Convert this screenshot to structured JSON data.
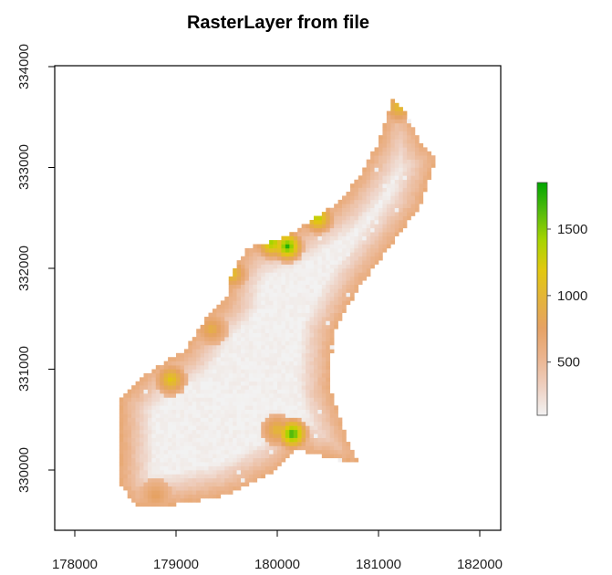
{
  "chart_data": {
    "type": "heatmap",
    "title": "RasterLayer from file",
    "xlabel": "",
    "ylabel": "",
    "xlim": [
      177800,
      182300
    ],
    "ylim": [
      329400,
      334000
    ],
    "x_ticks": [
      178000,
      179000,
      180000,
      181000,
      182000
    ],
    "y_ticks": [
      330000,
      331000,
      332000,
      333000,
      334000
    ],
    "x_tick_labels": [
      "178000",
      "179000",
      "180000",
      "181000",
      "182000"
    ],
    "y_tick_labels": [
      "330000",
      "331000",
      "332000",
      "333000",
      "334000"
    ],
    "legend": {
      "placement": "right",
      "range": [
        100,
        1850
      ],
      "ticks": [
        500,
        1000,
        1500
      ],
      "tick_labels": [
        "500",
        "1000",
        "1500"
      ],
      "colors": [
        "#f2f2f2",
        "#eecfc0",
        "#ebb48e",
        "#e6a264",
        "#e4b43a",
        "#e2c80e",
        "#a8d400",
        "#54bb0c",
        "#00a600"
      ]
    },
    "footprint": [
      [
        178460,
        329850
      ],
      [
        178460,
        330700
      ],
      [
        178700,
        330950
      ],
      [
        179100,
        331200
      ],
      [
        179300,
        331500
      ],
      [
        179500,
        331700
      ],
      [
        179550,
        331950
      ],
      [
        179700,
        332200
      ],
      [
        180050,
        332300
      ],
      [
        180300,
        332450
      ],
      [
        180600,
        332650
      ],
      [
        180800,
        332900
      ],
      [
        181000,
        333250
      ],
      [
        181150,
        333700
      ],
      [
        181300,
        333500
      ],
      [
        181450,
        333200
      ],
      [
        181570,
        333100
      ],
      [
        181400,
        332600
      ],
      [
        181100,
        332200
      ],
      [
        180800,
        331800
      ],
      [
        180550,
        331350
      ],
      [
        180520,
        330800
      ],
      [
        180700,
        330300
      ],
      [
        180800,
        330100
      ],
      [
        180600,
        330100
      ],
      [
        180200,
        330200
      ],
      [
        180000,
        330000
      ],
      [
        179500,
        329750
      ],
      [
        178950,
        329650
      ],
      [
        178600,
        329650
      ]
    ],
    "high_spots": [
      {
        "x": 180100,
        "y": 332220,
        "value": 1750
      },
      {
        "x": 180150,
        "y": 330360,
        "value": 1800
      },
      {
        "x": 179950,
        "y": 332250,
        "value": 1500
      },
      {
        "x": 181200,
        "y": 333600,
        "value": 1100
      },
      {
        "x": 180400,
        "y": 332500,
        "value": 1400
      },
      {
        "x": 178950,
        "y": 330900,
        "value": 1200
      },
      {
        "x": 179550,
        "y": 331950,
        "value": 1150
      },
      {
        "x": 179350,
        "y": 331400,
        "value": 950
      },
      {
        "x": 178800,
        "y": 329750,
        "value": 800
      },
      {
        "x": 180000,
        "y": 330400,
        "value": 1050
      }
    ]
  }
}
